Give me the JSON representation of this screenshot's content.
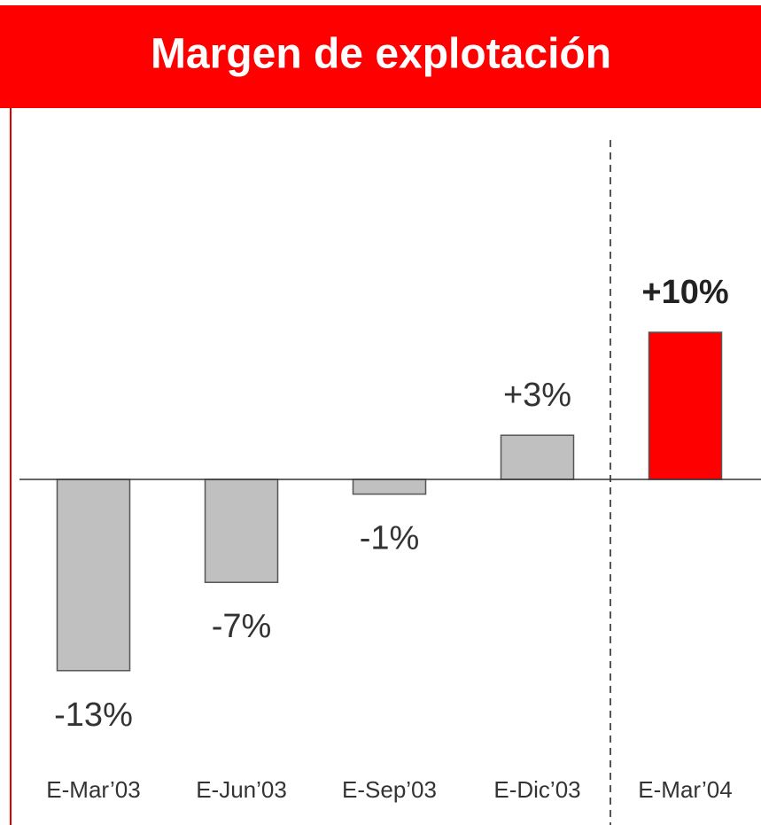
{
  "chart_data": {
    "type": "bar",
    "title": "Margen de explotación",
    "categories": [
      "E-Mar’03",
      "E-Jun’03",
      "E-Sep’03",
      "E-Dic’03",
      "E-Mar’04"
    ],
    "values": [
      -13,
      -7,
      -1,
      3,
      10
    ],
    "value_labels": [
      "-13%",
      "-7%",
      "-1%",
      "+3%",
      "+10%"
    ],
    "colors": [
      "#c0c0c0",
      "#c0c0c0",
      "#c0c0c0",
      "#c0c0c0",
      "#ff0000"
    ]
  }
}
